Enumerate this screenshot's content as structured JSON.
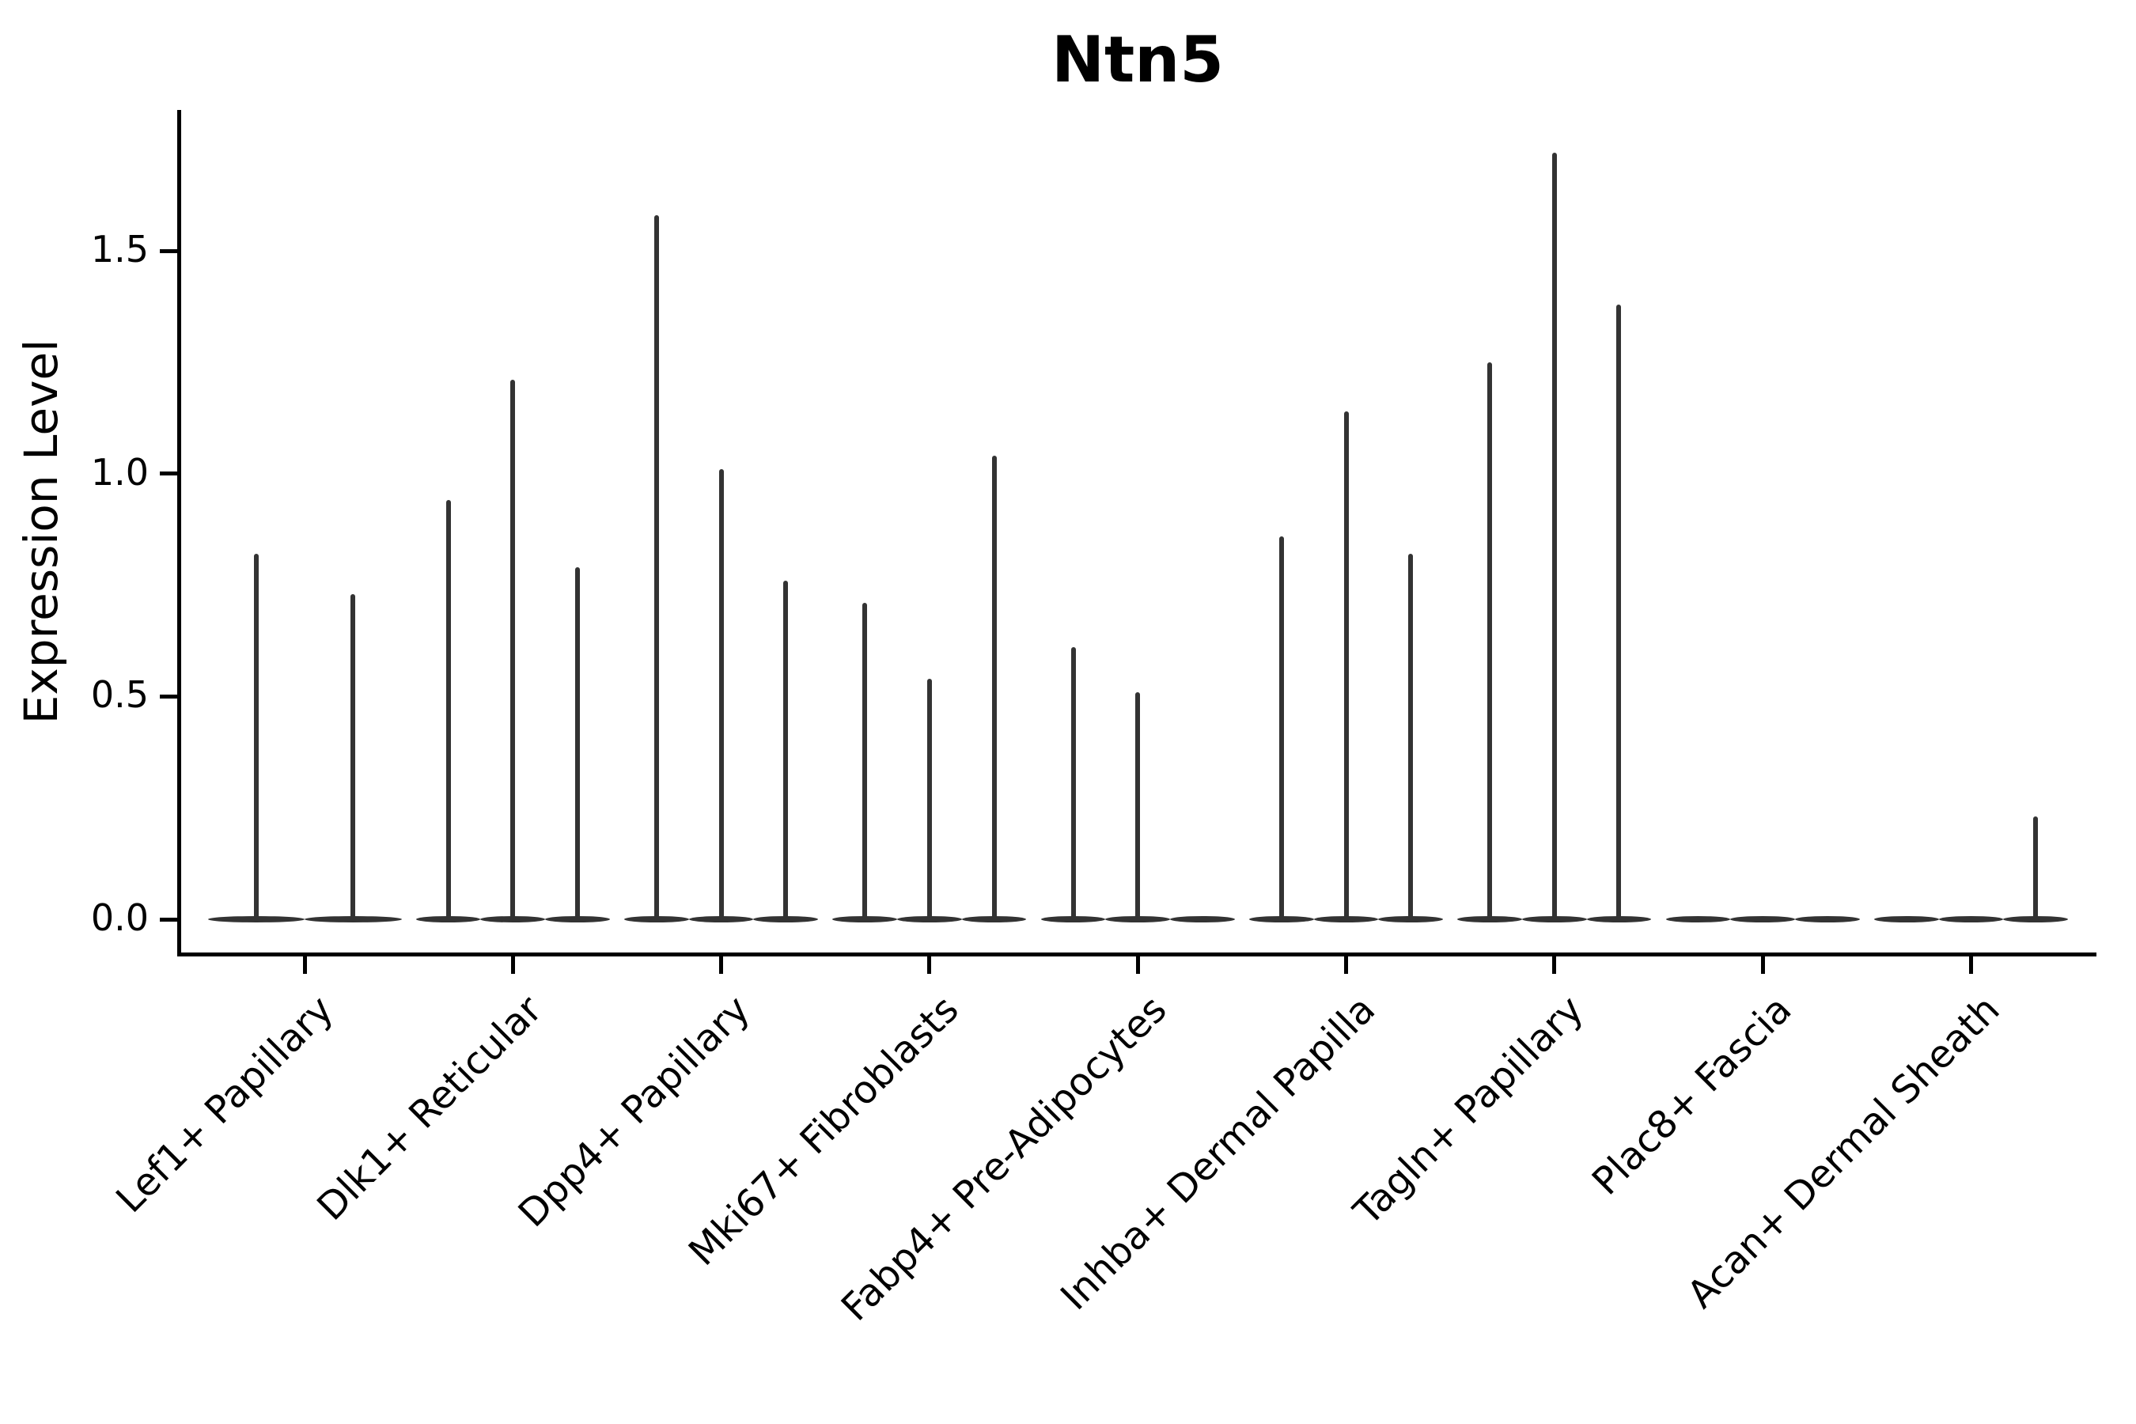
{
  "chart_data": {
    "type": "violin",
    "title": "Ntn5",
    "xlabel": "",
    "ylabel": "Expression Level",
    "ylim": [
      0,
      1.81
    ],
    "yticks": [
      "0.0",
      "0.5",
      "1.0",
      "1.5"
    ],
    "ytick_values": [
      0.0,
      0.5,
      1.0,
      1.5
    ],
    "grid": false,
    "legend_position": "none",
    "violin_color": "#333333",
    "axis_color": "#000000",
    "groups": [
      {
        "category": "Lef1+ Papillary",
        "violin_max_values": [
          0.82,
          0.73
        ]
      },
      {
        "category": "Dlk1+ Reticular",
        "violin_max_values": [
          0.94,
          1.21,
          0.79
        ]
      },
      {
        "category": "Dpp4+ Papillary",
        "violin_max_values": [
          1.58,
          1.01,
          0.76
        ]
      },
      {
        "category": "Mki67+ Fibroblasts",
        "violin_max_values": [
          0.71,
          0.54,
          1.04
        ]
      },
      {
        "category": "Fabp4+ Pre-Adipocytes",
        "violin_max_values": [
          0.61,
          0.51,
          0
        ]
      },
      {
        "category": "Inhba+ Dermal Papilla",
        "violin_max_values": [
          0.86,
          1.14,
          0.82
        ]
      },
      {
        "category": "Tagln+ Papillary",
        "violin_max_values": [
          1.25,
          1.72,
          1.38
        ]
      },
      {
        "category": "Plac8+ Fascia",
        "violin_max_values": [
          0,
          0,
          0
        ]
      },
      {
        "category": "Acan+ Dermal Sheath",
        "violin_max_values": [
          0,
          0,
          0.23
        ]
      }
    ]
  }
}
